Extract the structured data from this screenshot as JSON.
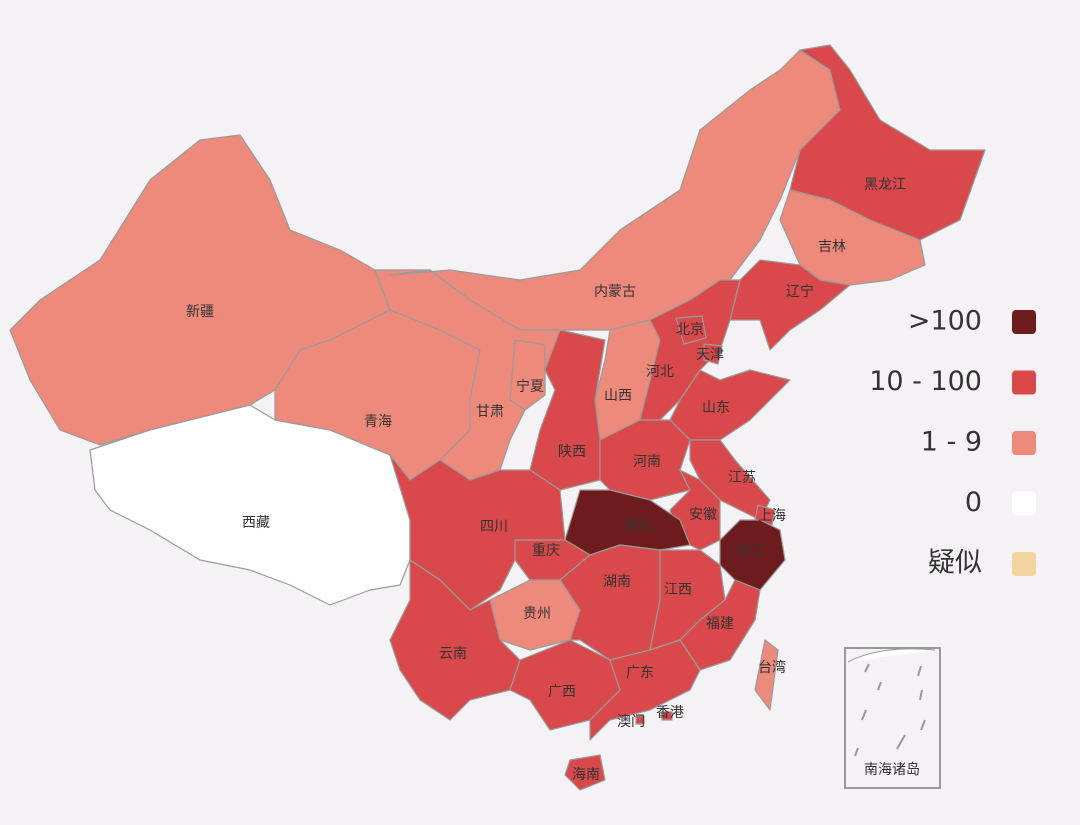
{
  "legend": [
    {
      "label": ">100",
      "color": "#6e1b1d"
    },
    {
      "label": "10 - 100",
      "color": "#d9484a"
    },
    {
      "label": "1 - 9",
      "color": "#ed8a7b"
    },
    {
      "label": "0",
      "color": "#ffffff"
    },
    {
      "label": "疑似",
      "color": "#f2d59e"
    }
  ],
  "regions": [
    {
      "name": "新疆",
      "color": "#ed8a7b"
    },
    {
      "name": "西藏",
      "color": "#ffffff"
    },
    {
      "name": "青海",
      "color": "#ed8a7b"
    },
    {
      "name": "甘肃",
      "color": "#ed8a7b"
    },
    {
      "name": "内蒙古",
      "color": "#ed8a7b"
    },
    {
      "name": "黑龙江",
      "color": "#d9484a"
    },
    {
      "name": "吉林",
      "color": "#ed8a7b"
    },
    {
      "name": "辽宁",
      "color": "#d9484a"
    },
    {
      "name": "河北",
      "color": "#d9484a"
    },
    {
      "name": "北京",
      "color": "#d9484a"
    },
    {
      "name": "天津",
      "color": "#d9484a"
    },
    {
      "name": "山西",
      "color": "#ed8a7b"
    },
    {
      "name": "宁夏",
      "color": "#ed8a7b"
    },
    {
      "name": "陕西",
      "color": "#d9484a"
    },
    {
      "name": "山东",
      "color": "#d9484a"
    },
    {
      "name": "河南",
      "color": "#d9484a"
    },
    {
      "name": "江苏",
      "color": "#d9484a"
    },
    {
      "name": "安徽",
      "color": "#d9484a"
    },
    {
      "name": "上海",
      "color": "#d9484a"
    },
    {
      "name": "浙江",
      "color": "#6e1b1d"
    },
    {
      "name": "湖北",
      "color": "#6e1b1d"
    },
    {
      "name": "重庆",
      "color": "#d9484a"
    },
    {
      "name": "四川",
      "color": "#d9484a"
    },
    {
      "name": "贵州",
      "color": "#ed8a7b"
    },
    {
      "name": "云南",
      "color": "#d9484a"
    },
    {
      "name": "湖南",
      "color": "#d9484a"
    },
    {
      "name": "江西",
      "color": "#d9484a"
    },
    {
      "name": "福建",
      "color": "#d9484a"
    },
    {
      "name": "广西",
      "color": "#d9484a"
    },
    {
      "name": "广东",
      "color": "#d9484a"
    },
    {
      "name": "海南",
      "color": "#d9484a"
    },
    {
      "name": "台湾",
      "color": "#ed8a7b"
    },
    {
      "name": "香港",
      "color": "#d9484a"
    },
    {
      "name": "澳门",
      "color": "#d9484a"
    }
  ],
  "inset": {
    "label": "南海诸岛"
  }
}
